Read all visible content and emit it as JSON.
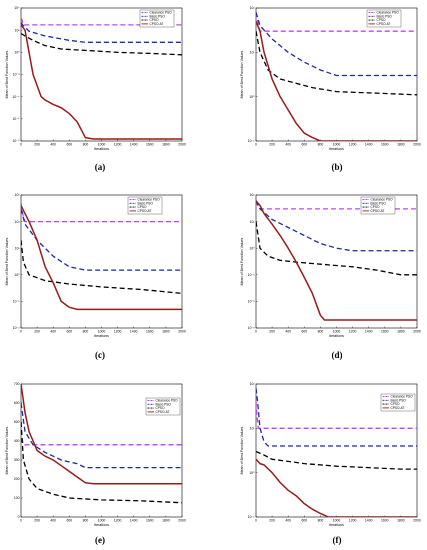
{
  "colors": {
    "clearance": "#c040ff",
    "basic": "#1a2aa8",
    "cpso": "#000000",
    "cpso_at": "#9a1a1a"
  },
  "chart_data": [
    {
      "type": "line",
      "caption": "(a)",
      "scale": "log",
      "ylabel": "Mean of Best Function Values",
      "xlabel": "Iterations",
      "xlim": [
        0,
        2000
      ],
      "ylim_exp": [
        -8,
        4
      ],
      "ytick_exps": [
        4,
        2,
        0,
        -2,
        -4,
        -6,
        -8
      ],
      "xticks": [
        0,
        200,
        400,
        600,
        800,
        1000,
        1200,
        1400,
        1600,
        1800,
        2000
      ],
      "legend": [
        "Clearance PSO",
        "Basic PSO",
        "CPSO",
        "CPSO-AT"
      ],
      "series": [
        {
          "name": "Clearance PSO",
          "color_key": "clearance",
          "dash": "5,3",
          "x": [
            0,
            10,
            30,
            2000
          ],
          "y": [
            1200,
            900,
            300,
            300
          ]
        },
        {
          "name": "Basic PSO",
          "color_key": "basic",
          "dash": "5,3",
          "x": [
            0,
            20,
            100,
            300,
            600,
            800,
            1000,
            2000
          ],
          "y": [
            500,
            300,
            80,
            30,
            12,
            8,
            8,
            8
          ]
        },
        {
          "name": "CPSO",
          "color_key": "cpso",
          "dash": "5,3",
          "x": [
            0,
            50,
            150,
            300,
            500,
            800,
            1200,
            1600,
            2000
          ],
          "y": [
            50,
            30,
            12,
            4,
            2,
            1.5,
            1,
            0.8,
            0.6
          ]
        },
        {
          "name": "CPSO-AT",
          "color_key": "cpso_at",
          "dash": "",
          "x": [
            0,
            50,
            100,
            150,
            200,
            250,
            300,
            400,
            500,
            600,
            700,
            800,
            900,
            1000,
            2000
          ],
          "y": [
            300,
            100,
            1,
            0.01,
            0.001,
            0.0001,
            5e-05,
            2e-05,
            1e-05,
            3e-06,
            5e-07,
            2e-08,
            1.5e-08,
            1.5e-08,
            1.5e-08
          ]
        }
      ]
    },
    {
      "type": "line",
      "caption": "(b)",
      "scale": "log",
      "ylabel": "Mean of Best Function Values",
      "xlabel": "Iterations",
      "xlim": [
        0,
        2000
      ],
      "ylim_exp": [
        -1,
        2
      ],
      "ytick_exps": [
        2,
        1,
        0,
        -1
      ],
      "xticks": [
        0,
        200,
        400,
        600,
        800,
        1000,
        1200,
        1400,
        1600,
        1800,
        2000
      ],
      "legend": [
        "Clearance PSO",
        "Basic PSO",
        "CPSO",
        "CPSO-AT"
      ],
      "series": [
        {
          "name": "Clearance PSO",
          "color_key": "clearance",
          "dash": "5,3",
          "x": [
            0,
            20,
            50,
            2000
          ],
          "y": [
            80,
            50,
            30,
            30
          ]
        },
        {
          "name": "Basic PSO",
          "color_key": "basic",
          "dash": "5,3",
          "x": [
            0,
            50,
            200,
            400,
            600,
            800,
            1000,
            2000
          ],
          "y": [
            80,
            40,
            20,
            10,
            6,
            4,
            3,
            3
          ]
        },
        {
          "name": "CPSO",
          "color_key": "cpso",
          "dash": "5,3",
          "x": [
            0,
            50,
            150,
            300,
            500,
            700,
            1000,
            1500,
            2000
          ],
          "y": [
            30,
            10,
            4,
            2.5,
            2,
            1.6,
            1.3,
            1.2,
            1.1
          ]
        },
        {
          "name": "CPSO-AT",
          "color_key": "cpso_at",
          "dash": "",
          "x": [
            0,
            50,
            100,
            200,
            300,
            400,
            500,
            600,
            700,
            800,
            900,
            2000
          ],
          "y": [
            50,
            30,
            10,
            2.5,
            1,
            0.5,
            0.25,
            0.15,
            0.12,
            0.1,
            0.1,
            0.1
          ]
        }
      ]
    },
    {
      "type": "line",
      "caption": "(c)",
      "scale": "log",
      "ylabel": "Mean of Best Function Values",
      "xlabel": "Iterations",
      "xlim": [
        0,
        2000
      ],
      "ylim_exp": [
        -2,
        3
      ],
      "ytick_exps": [
        3,
        2,
        1,
        0,
        -1,
        -2
      ],
      "xticks": [
        0,
        200,
        400,
        600,
        800,
        1000,
        1200,
        1400,
        1600,
        1800,
        2000
      ],
      "legend": [
        "Clearance PSO",
        "Basic PSO",
        "CPSO",
        "CPSO-AT"
      ],
      "series": [
        {
          "name": "Clearance PSO",
          "color_key": "clearance",
          "dash": "5,3",
          "x": [
            0,
            20,
            50,
            2000
          ],
          "y": [
            500,
            200,
            100,
            100
          ]
        },
        {
          "name": "Basic PSO",
          "color_key": "basic",
          "dash": "5,3",
          "x": [
            0,
            50,
            200,
            400,
            600,
            800,
            1000,
            2000
          ],
          "y": [
            300,
            80,
            20,
            5,
            2,
            1.5,
            1.5,
            1.5
          ]
        },
        {
          "name": "CPSO",
          "color_key": "cpso",
          "dash": "5,3",
          "x": [
            0,
            30,
            100,
            300,
            600,
            1000,
            1500,
            2000
          ],
          "y": [
            20,
            3,
            1,
            0.6,
            0.45,
            0.35,
            0.28,
            0.2
          ]
        },
        {
          "name": "CPSO-AT",
          "color_key": "cpso_at",
          "dash": "",
          "x": [
            0,
            50,
            100,
            200,
            300,
            400,
            500,
            600,
            700,
            800,
            2000
          ],
          "y": [
            400,
            200,
            100,
            20,
            2,
            0.5,
            0.1,
            0.06,
            0.05,
            0.05,
            0.05
          ]
        }
      ]
    },
    {
      "type": "line",
      "caption": "(d)",
      "scale": "log",
      "ylabel": "Mean of Best Function Values",
      "xlabel": "Iterations",
      "xlim": [
        0,
        2000
      ],
      "ylim_exp": [
        -3,
        2
      ],
      "ytick_exps": [
        2,
        1,
        0,
        -1,
        -2,
        -3
      ],
      "xticks": [
        0,
        200,
        400,
        600,
        800,
        1000,
        1200,
        1400,
        1600,
        1800,
        2000
      ],
      "legend": [
        "Clearance PSO",
        "Basic PSO",
        "CPSO",
        "CPSO-AT"
      ],
      "series": [
        {
          "name": "Clearance PSO",
          "color_key": "clearance",
          "dash": "5,3",
          "x": [
            0,
            20,
            50,
            2000
          ],
          "y": [
            60,
            40,
            30,
            30
          ]
        },
        {
          "name": "Basic PSO",
          "color_key": "basic",
          "dash": "5,3",
          "x": [
            0,
            50,
            200,
            400,
            600,
            800,
            1000,
            1200,
            1500,
            2000
          ],
          "y": [
            60,
            30,
            12,
            6,
            3,
            1.5,
            1,
            0.8,
            0.8,
            0.8
          ]
        },
        {
          "name": "CPSO",
          "color_key": "cpso",
          "dash": "5,3",
          "x": [
            0,
            50,
            150,
            300,
            500,
            800,
            1200,
            1500,
            1800,
            2000
          ],
          "y": [
            10,
            1,
            0.5,
            0.35,
            0.3,
            0.25,
            0.2,
            0.15,
            0.1,
            0.1
          ]
        },
        {
          "name": "CPSO-AT",
          "color_key": "cpso_at",
          "dash": "",
          "x": [
            0,
            50,
            100,
            200,
            300,
            400,
            500,
            600,
            700,
            800,
            850,
            900,
            2000
          ],
          "y": [
            60,
            40,
            20,
            8,
            3,
            1,
            0.3,
            0.08,
            0.02,
            0.003,
            0.002,
            0.002,
            0.002
          ]
        }
      ]
    },
    {
      "type": "line",
      "caption": "(e)",
      "scale": "linear",
      "ylabel": "Mean of Best Function Values",
      "xlabel": "Iterations",
      "xlim": [
        0,
        2000
      ],
      "ylim": [
        0,
        700
      ],
      "yticks": [
        0,
        100,
        200,
        300,
        400,
        500,
        600,
        700
      ],
      "xticks": [
        0,
        200,
        400,
        600,
        800,
        1000,
        1200,
        1400,
        1600,
        1800,
        2000
      ],
      "legend": [
        "Clearance PSO",
        "Basic PSO",
        "CPSO",
        "CPSO-AT"
      ],
      "series": [
        {
          "name": "Clearance PSO",
          "color_key": "clearance",
          "dash": "5,3",
          "x": [
            0,
            10,
            30,
            2000
          ],
          "y": [
            500,
            420,
            380,
            380
          ]
        },
        {
          "name": "Basic PSO",
          "color_key": "basic",
          "dash": "5,3",
          "x": [
            0,
            50,
            150,
            300,
            500,
            700,
            800,
            1000,
            2000
          ],
          "y": [
            600,
            450,
            380,
            340,
            300,
            280,
            260,
            260,
            260
          ]
        },
        {
          "name": "CPSO",
          "color_key": "cpso",
          "dash": "5,3",
          "x": [
            0,
            30,
            100,
            200,
            400,
            600,
            800,
            1000,
            1500,
            2000
          ],
          "y": [
            500,
            300,
            200,
            150,
            120,
            100,
            95,
            90,
            85,
            75
          ]
        },
        {
          "name": "CPSO-AT",
          "color_key": "cpso_at",
          "dash": "",
          "x": [
            0,
            50,
            100,
            150,
            200,
            300,
            400,
            500,
            600,
            700,
            800,
            900,
            1000,
            2000
          ],
          "y": [
            700,
            550,
            450,
            400,
            350,
            320,
            300,
            270,
            240,
            210,
            180,
            175,
            175,
            175
          ]
        }
      ]
    },
    {
      "type": "line",
      "caption": "(f)",
      "scale": "log",
      "ylabel": "Mean of Best Function Values",
      "xlabel": "Iterations",
      "xlim": [
        0,
        2000
      ],
      "ylim_exp": [
        -1,
        2
      ],
      "ytick_exps": [
        2,
        1,
        0,
        -1
      ],
      "xticks": [
        0,
        200,
        400,
        600,
        800,
        1000,
        1200,
        1400,
        1600,
        1800,
        2000
      ],
      "legend": [
        "Clearance PSO",
        "Basic PSO",
        "CPSO",
        "CPSO-AT"
      ],
      "series": [
        {
          "name": "Clearance PSO",
          "color_key": "clearance",
          "dash": "5,3",
          "x": [
            0,
            10,
            30,
            2000
          ],
          "y": [
            40,
            20,
            10,
            10
          ]
        },
        {
          "name": "Basic PSO",
          "color_key": "basic",
          "dash": "5,3",
          "x": [
            0,
            20,
            50,
            100,
            150,
            200,
            2000
          ],
          "y": [
            80,
            40,
            10,
            5,
            4,
            4,
            4
          ]
        },
        {
          "name": "CPSO",
          "color_key": "cpso",
          "dash": "5,3",
          "x": [
            0,
            100,
            200,
            400,
            600,
            800,
            1000,
            1400,
            1800,
            2000
          ],
          "y": [
            3,
            2.5,
            2,
            1.8,
            1.6,
            1.5,
            1.4,
            1.3,
            1.2,
            1.2
          ]
        },
        {
          "name": "CPSO-AT",
          "color_key": "cpso_at",
          "dash": "",
          "x": [
            0,
            50,
            100,
            200,
            300,
            400,
            500,
            600,
            700,
            800,
            900,
            1000,
            2000
          ],
          "y": [
            2,
            1.6,
            1.5,
            1,
            0.6,
            0.4,
            0.3,
            0.2,
            0.15,
            0.12,
            0.1,
            0.1,
            0.1
          ]
        }
      ]
    }
  ]
}
